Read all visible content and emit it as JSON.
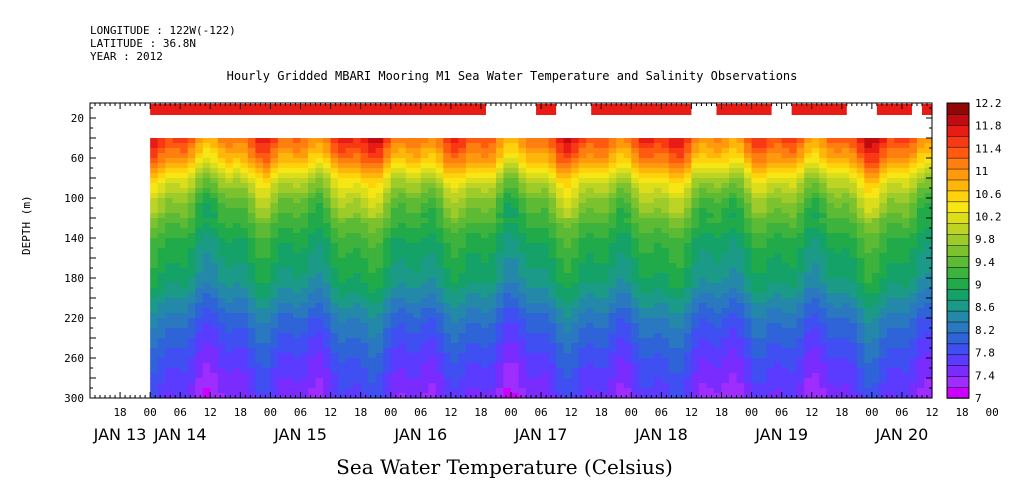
{
  "header": {
    "longitude": "LONGITUDE : 122W(-122)",
    "latitude": "LATITUDE : 36.8N",
    "year": "YEAR : 2012"
  },
  "chart_data": {
    "type": "heatmap",
    "title": "Hourly Gridded MBARI Mooring M1 Sea Water Temperature and Salinity Observations",
    "xlabel": "Sea Water Temperature (Celsius)",
    "ylabel": "DEPTH (m)",
    "x_axis": {
      "hour_ticks": [
        "18",
        "00",
        "06",
        "12",
        "18",
        "00",
        "06",
        "12",
        "18",
        "00",
        "06",
        "12",
        "18",
        "00",
        "06",
        "12",
        "18",
        "00",
        "06",
        "12",
        "18",
        "00",
        "06",
        "12",
        "18",
        "00",
        "06",
        "12",
        "18",
        "00",
        "06",
        "12"
      ],
      "day_labels": [
        "JAN 13",
        "JAN 14",
        "JAN 15",
        "JAN 16",
        "JAN 17",
        "JAN 18",
        "JAN 19",
        "JAN 20"
      ],
      "range_hours_from_jan13_00": [
        12,
        180
      ]
    },
    "y_axis": {
      "ticks": [
        20,
        60,
        100,
        140,
        180,
        220,
        260,
        300
      ],
      "range": [
        5,
        300
      ],
      "reversed": true
    },
    "data_top_depth": 40,
    "colorbar": {
      "levels": [
        7,
        7.2,
        7.4,
        7.6,
        7.8,
        8,
        8.2,
        8.4,
        8.6,
        8.8,
        9,
        9.2,
        9.4,
        9.6,
        9.8,
        10,
        10.2,
        10.4,
        10.6,
        10.8,
        11,
        11.2,
        11.4,
        11.6,
        11.8,
        12,
        12.2
      ],
      "labels": [
        "12.2",
        "11.8",
        "11.4",
        "11",
        "10.6",
        "10.2",
        "9.8",
        "9.4",
        "9",
        "8.6",
        "8.2",
        "7.8",
        "7.4",
        "7"
      ],
      "colors": [
        "#cc00ff",
        "#9f2dff",
        "#7a2cff",
        "#5a3bff",
        "#3f4ff2",
        "#2f63d8",
        "#2a78c0",
        "#2489a8",
        "#1c9a88",
        "#15a268",
        "#20aa4a",
        "#3db23c",
        "#5dba34",
        "#7cc22e",
        "#9dcb2a",
        "#bdd424",
        "#dcde1c",
        "#f6e614",
        "#ffd20c",
        "#ffb60a",
        "#ff9a0c",
        "#ff7e10",
        "#ff5a10",
        "#f83a14",
        "#e81c14",
        "#c00c10",
        "#900806"
      ]
    },
    "surface_temperature": 11.9,
    "surface_data_gaps_hours": [
      [
        91,
        101
      ],
      [
        105,
        112
      ],
      [
        132,
        137
      ],
      [
        148,
        152
      ],
      [
        163,
        169
      ],
      [
        176,
        178
      ]
    ],
    "profile_summary": [
      {
        "depth": 40,
        "temp": 11.5
      },
      {
        "depth": 60,
        "temp": 11.0
      },
      {
        "depth": 80,
        "temp": 10.2
      },
      {
        "depth": 100,
        "temp": 9.7
      },
      {
        "depth": 140,
        "temp": 9.1
      },
      {
        "depth": 180,
        "temp": 8.8
      },
      {
        "depth": 220,
        "temp": 8.2
      },
      {
        "depth": 260,
        "temp": 7.8
      },
      {
        "depth": 300,
        "temp": 7.5
      }
    ]
  }
}
